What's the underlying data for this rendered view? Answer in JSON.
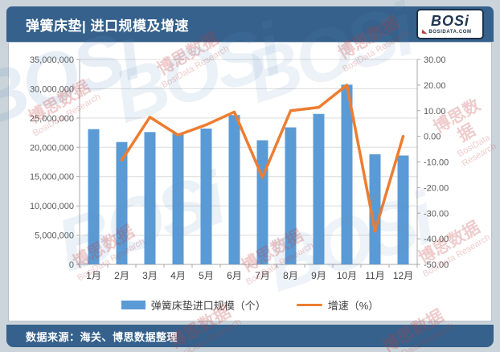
{
  "header": {
    "title": "弹簧床垫| 进口规模及增速",
    "logo": {
      "brand": "BOSi",
      "domain": "BOSIDATA.COM"
    }
  },
  "footer": {
    "source": "数据来源：海关、博思数据整理"
  },
  "watermark": {
    "cn": "博思数据",
    "en": "BosiData Research",
    "brand": "BOSi"
  },
  "colors": {
    "page_bg": "#CBD4DA",
    "band_bg": "#35618C",
    "grid": "#DCDCDC",
    "axis_line": "#A8A8A8",
    "axis_text": "#595959",
    "wm_red": "#C23B3B",
    "wm_blue": "#5B8FBF"
  },
  "chart_data": {
    "type": "bar",
    "subtype": "bar+line combo, dual axis",
    "title": "弹簧床垫| 进口规模及增速",
    "categories": [
      "1月",
      "2月",
      "3月",
      "4月",
      "5月",
      "6月",
      "7月",
      "8月",
      "9月",
      "10月",
      "11月",
      "12月"
    ],
    "series": [
      {
        "name": "弹簧床垫进口规模（个）",
        "type": "bar",
        "axis": "left",
        "color": "#5B9BD5",
        "values": [
          23100000,
          20900000,
          22600000,
          22400000,
          23200000,
          25500000,
          21200000,
          23400000,
          25700000,
          30700000,
          18800000,
          18600000
        ]
      },
      {
        "name": "增速（%）",
        "type": "line",
        "axis": "right",
        "color": "#ED7D31",
        "values": [
          null,
          -9.3,
          7.5,
          0.5,
          4.5,
          9.5,
          -16.0,
          10.0,
          11.3,
          20.0,
          -37.0,
          0.0
        ]
      }
    ],
    "left_axis": {
      "min": 0,
      "max": 35000000,
      "step": 5000000,
      "ticks": [
        "0",
        "5,000,000",
        "10,000,000",
        "15,000,000",
        "20,000,000",
        "25,000,000",
        "30,000,000",
        "35,000,000"
      ]
    },
    "right_axis": {
      "min": -50,
      "max": 30,
      "step": 10,
      "ticks": [
        "-50.00",
        "-40.00",
        "-30.00",
        "-20.00",
        "-10.00",
        "0.00",
        "10.00",
        "20.00",
        "30.00"
      ]
    },
    "grid": true,
    "legend_position": "bottom"
  }
}
